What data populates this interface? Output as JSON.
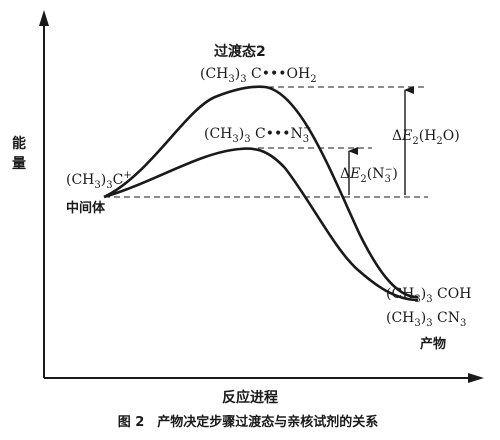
{
  "axes": {
    "y_label": "能量",
    "x_label": "反应进程"
  },
  "labels": {
    "ts2_title": "过渡态2",
    "ts_water_base": "(CH",
    "ts_water_sub3": "3",
    "ts_water_mid": ")",
    "ts_water_sub3b": "3",
    "ts_water_tail": " C•••OH",
    "ts_water_sub2": "2",
    "ts_azide_base": "(CH",
    "ts_azide_sub3": "3",
    "ts_azide_mid": ")",
    "ts_azide_sub3b": "3",
    "ts_azide_tail": " C•••N",
    "ts_azide_sub": "3",
    "ts_azide_sup": "−",
    "intermediate_base": "(CH",
    "intermediate_sub3": "3",
    "intermediate_mid": ")",
    "intermediate_sub3b": "3",
    "intermediate_tail": "C",
    "intermediate_sup": "+",
    "intermediate_name": "中间体",
    "product_alcohol_base": "(CH",
    "product_alcohol_sub3": "3",
    "product_alcohol_mid": ")",
    "product_alcohol_sub3b": "3",
    "product_alcohol_tail": " COH",
    "product_azide_base": "(CH",
    "product_azide_sub3": "3",
    "product_azide_mid": ")",
    "product_azide_sub3b": "3",
    "product_azide_tail": " CN",
    "product_azide_sub": "3",
    "product_name": "产物",
    "de_water_prefix": "Δ",
    "de_water_E": "E",
    "de_water_sub": "2",
    "de_water_tail": "(H",
    "de_water_sub2": "2",
    "de_water_end": "O)",
    "de_azide_prefix": "Δ",
    "de_azide_E": "E",
    "de_azide_sub": "2",
    "de_azide_tail": "(N",
    "de_azide_sub3": "3",
    "de_azide_sup": "−",
    "de_azide_end": ")"
  },
  "caption": {
    "text": "图 2　产物决定步骤过渡态与亲核试剂的关系"
  }
}
